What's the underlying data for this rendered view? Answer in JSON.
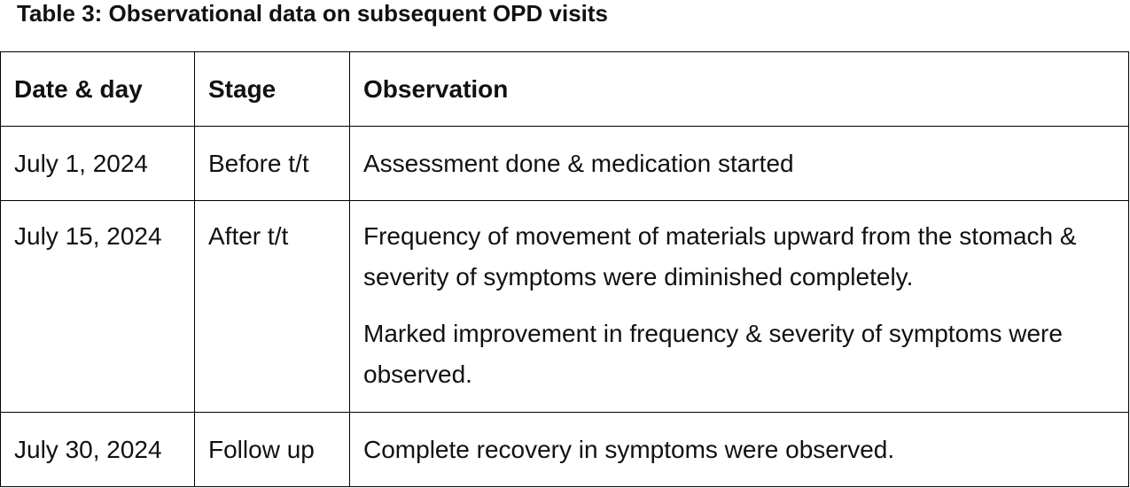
{
  "caption": "Table 3: Observational data on subsequent OPD visits",
  "table": {
    "headers": [
      "Date & day",
      "Stage",
      "Observation"
    ],
    "rows": [
      {
        "date": "July 1, 2024",
        "stage": "Before t/t",
        "observations": [
          "Assessment done & medication started"
        ]
      },
      {
        "date": "July 15, 2024",
        "stage": "After t/t",
        "observations": [
          "Frequency of movement of materials upward from the stomach & severity of symptoms were diminished completely.",
          "Marked improvement in frequency & severity of symptoms were observed."
        ]
      },
      {
        "date": "July 30, 2024",
        "stage": "Follow up",
        "observations": [
          "Complete recovery in symptoms were observed."
        ]
      }
    ]
  }
}
